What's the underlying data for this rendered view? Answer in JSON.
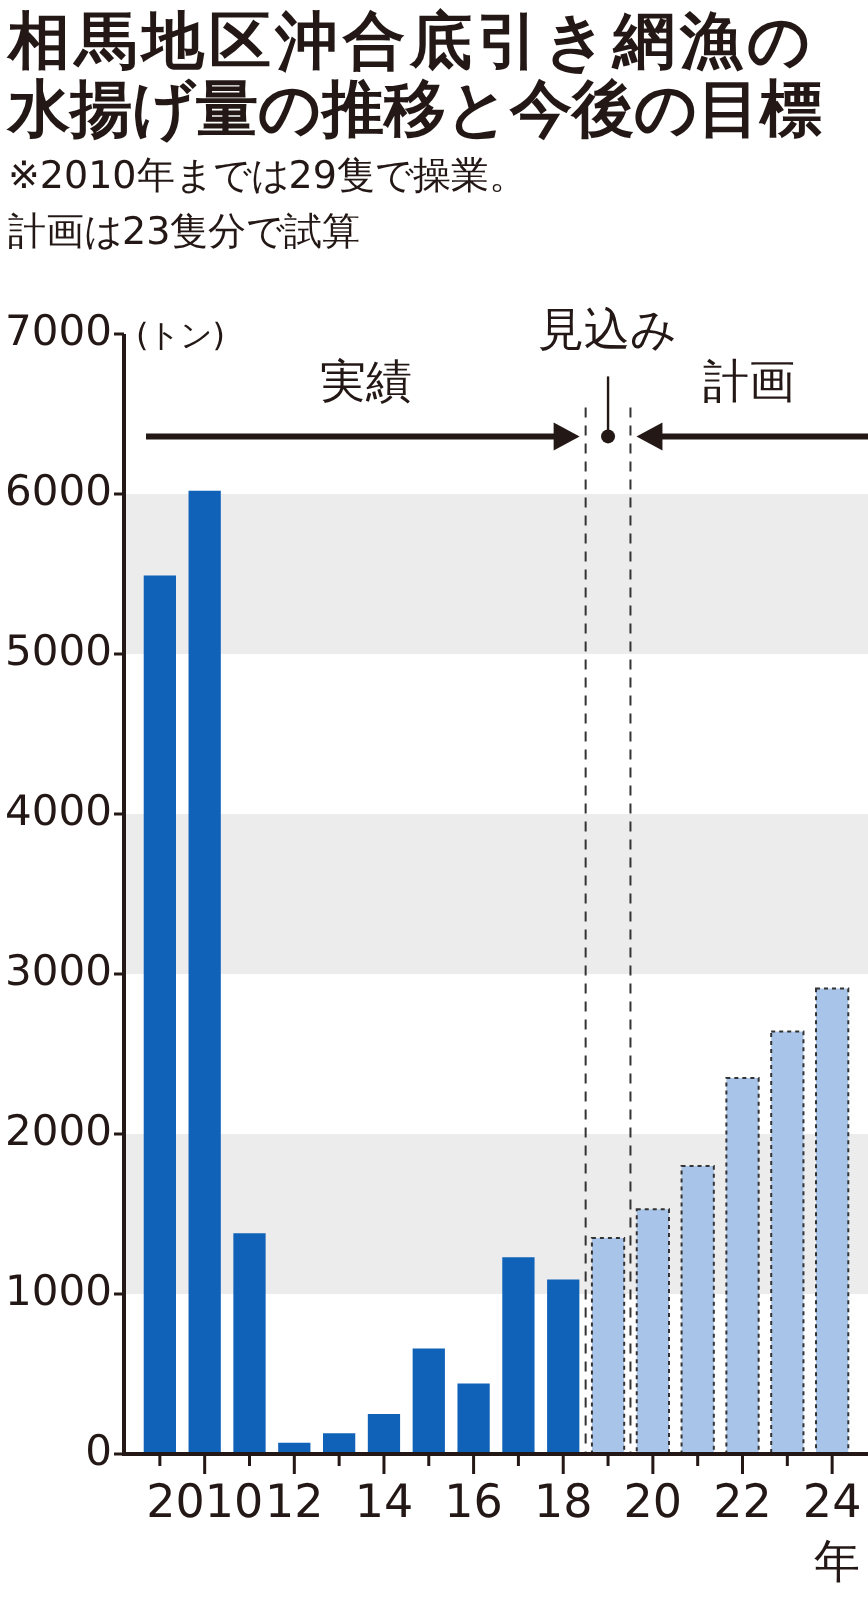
{
  "chart_data": {
    "type": "bar",
    "title": "相馬地区沖合底引き網漁の水揚げ量の推移と今後の目標",
    "subtitle": "※2010年までは29隻で操業。計画は23隻分で試算",
    "ylabel": "(トン)",
    "xlabel": "年",
    "x": [
      2009,
      2010,
      2011,
      2012,
      2013,
      2014,
      2015,
      2016,
      2017,
      2018,
      2019,
      2020,
      2021,
      2022,
      2023,
      2024
    ],
    "series": [
      {
        "color": "#0f62b8",
        "values": [
          5490,
          6020,
          1380,
          70,
          130,
          250,
          660,
          440,
          1230,
          1090,
          null,
          null,
          null,
          null,
          null,
          null
        ]
      },
      {
        "color": "#a8c4e8",
        "line_style": "dotted",
        "values": [
          null,
          null,
          null,
          null,
          null,
          null,
          null,
          null,
          null,
          null,
          1350,
          1530,
          1800,
          2350,
          2640,
          2910
        ]
      }
    ],
    "xlim": [
      2008.2,
      2024.8
    ],
    "xticks": [
      {
        "value": 2009,
        "label": null
      },
      {
        "value": 2010,
        "label": "2010"
      },
      {
        "value": 2011,
        "label": null
      },
      {
        "value": 2012,
        "label": "12"
      },
      {
        "value": 2013,
        "label": null
      },
      {
        "value": 2014,
        "label": "14"
      },
      {
        "value": 2015,
        "label": null
      },
      {
        "value": 2016,
        "label": "16"
      },
      {
        "value": 2017,
        "label": null
      },
      {
        "value": 2018,
        "label": "18"
      },
      {
        "value": 2019,
        "label": null
      },
      {
        "value": 2020,
        "label": "20"
      },
      {
        "value": 2021,
        "label": null
      },
      {
        "value": 2022,
        "label": "22"
      },
      {
        "value": 2023,
        "label": null
      },
      {
        "value": 2024,
        "label": "24"
      }
    ],
    "ylim": [
      0,
      7000
    ],
    "yticks": [
      0,
      1000,
      2000,
      3000,
      4000,
      5000,
      6000,
      7000
    ],
    "legend": false,
    "bands": [
      {
        "axis": "y",
        "from": 1000,
        "to": 2000,
        "color": "#ececec"
      },
      {
        "axis": "y",
        "from": 3000,
        "to": 4000,
        "color": "#ececec"
      },
      {
        "axis": "y",
        "from": 5000,
        "to": 6000,
        "color": "#ececec"
      }
    ],
    "ref_lines": [
      {
        "axis": "x",
        "value": 2018.5,
        "line_style": "dashed"
      },
      {
        "axis": "x",
        "value": 2019.5,
        "line_style": "dashed"
      }
    ],
    "annotations": [
      "実績",
      {
        "text": "見込み",
        "x": 2019,
        "y": 6360
      },
      "計画"
    ]
  }
}
